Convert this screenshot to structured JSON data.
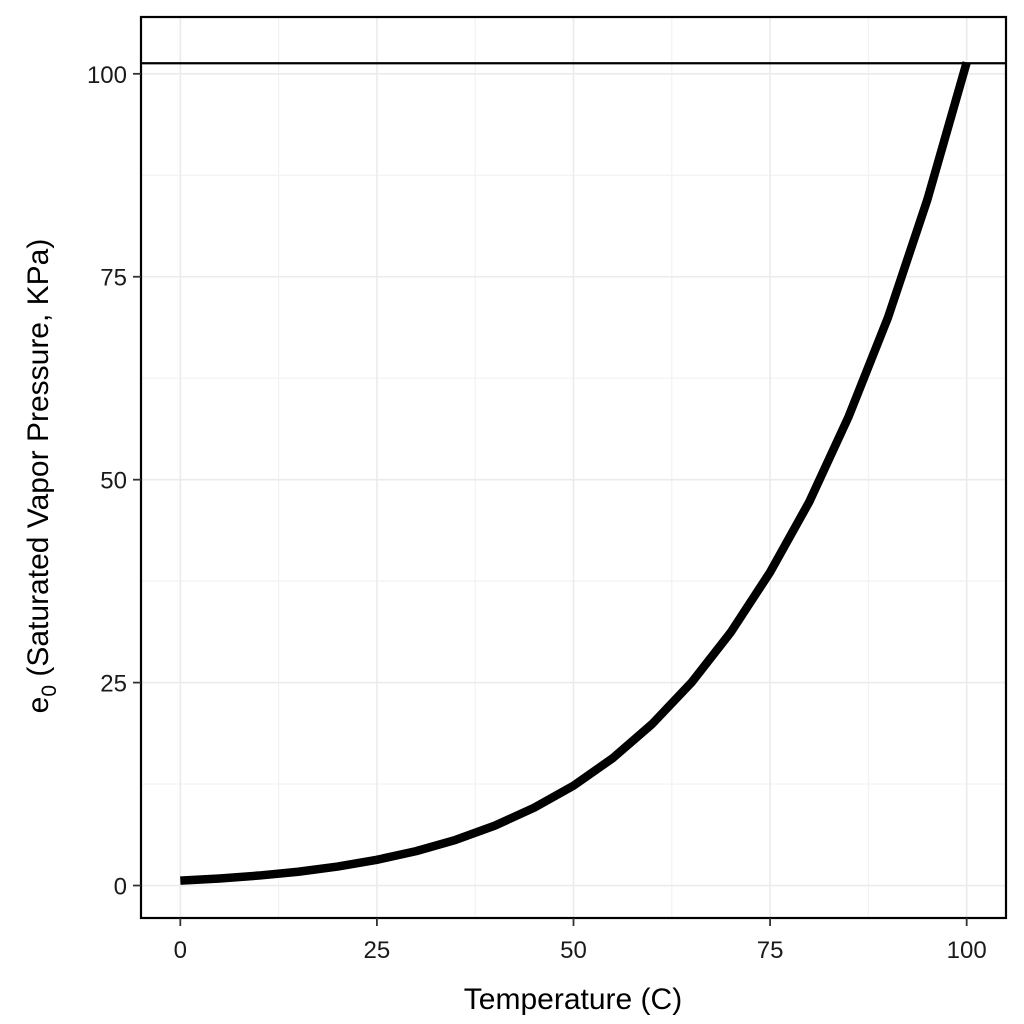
{
  "chart_data": {
    "type": "line",
    "title": "",
    "xlabel": "Temperature (C)",
    "ylabel": {
      "prefix": "e",
      "subscript": "0",
      "suffix": " (Saturated Vapor Pressure, KPa)"
    },
    "xlim": [
      -5,
      105
    ],
    "ylim": [
      -4,
      107
    ],
    "x_ticks": [
      0,
      25,
      50,
      75,
      100
    ],
    "y_ticks": [
      0,
      25,
      50,
      75,
      100
    ],
    "x_tick_labels": [
      "0",
      "25",
      "50",
      "75",
      "100"
    ],
    "y_tick_labels": [
      "0",
      "25",
      "50",
      "75",
      "100"
    ],
    "grid": true,
    "reference_line": {
      "y": 101.3
    },
    "series": [
      {
        "x": [
          0,
          5,
          10,
          15,
          20,
          25,
          30,
          35,
          40,
          45,
          50,
          55,
          60,
          65,
          70,
          75,
          80,
          85,
          90,
          95,
          100
        ],
        "y": [
          0.61,
          0.87,
          1.23,
          1.7,
          2.34,
          3.17,
          4.24,
          5.62,
          7.38,
          9.59,
          12.3,
          15.7,
          19.9,
          25.0,
          31.2,
          38.6,
          47.3,
          57.8,
          70.0,
          84.5,
          101.4
        ],
        "color": "#000000"
      }
    ]
  }
}
